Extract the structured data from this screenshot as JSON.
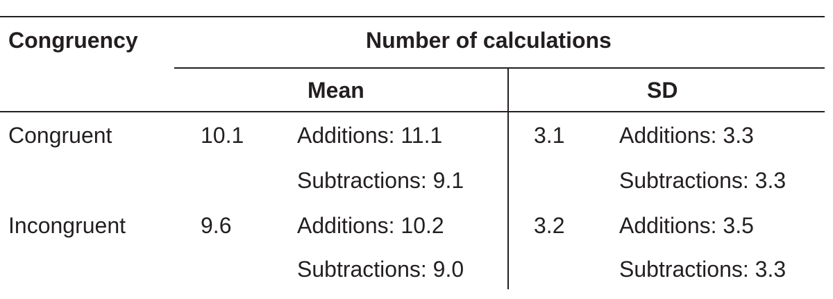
{
  "table": {
    "header": {
      "congruency": "Congruency",
      "number_of_calculations": "Number of calculations",
      "mean": "Mean",
      "sd": "SD"
    },
    "rows": [
      {
        "label": "Congruent",
        "mean": "10.1",
        "mean_additions": "Additions: 11.1",
        "mean_subtractions": "Subtractions: 9.1",
        "sd": "3.1",
        "sd_additions": "Additions: 3.3",
        "sd_subtractions": "Subtractions: 3.3"
      },
      {
        "label": "Incongruent",
        "mean": "9.6",
        "mean_additions": "Additions: 10.2",
        "mean_subtractions": "Subtractions: 9.0",
        "sd": "3.2",
        "sd_additions": "Additions: 3.5",
        "sd_subtractions": "Subtractions: 3.3"
      }
    ]
  }
}
